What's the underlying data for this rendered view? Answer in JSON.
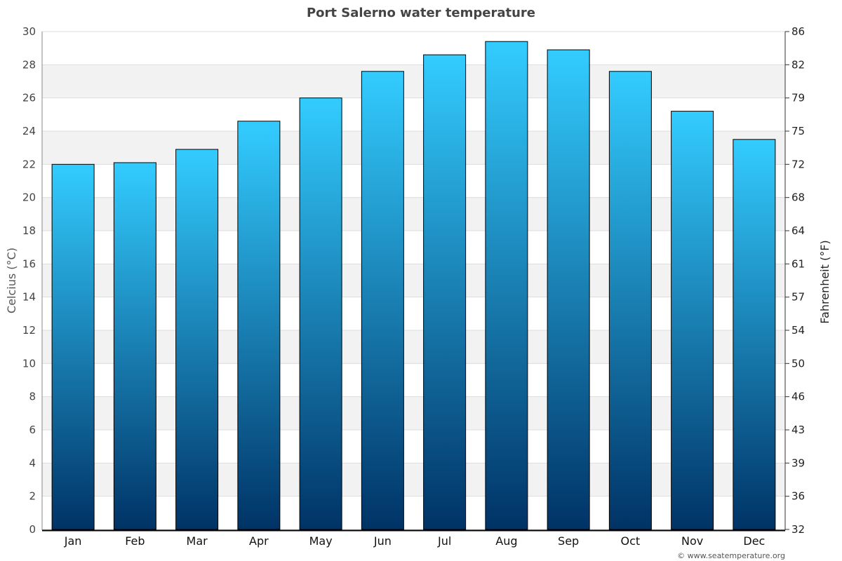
{
  "chart_data": {
    "type": "bar",
    "title": "Port Salerno water temperature",
    "ylabel": "Celcius (°C)",
    "y2label": "Fahrenheit (°F)",
    "categories": [
      "Jan",
      "Feb",
      "Mar",
      "Apr",
      "May",
      "Jun",
      "Jul",
      "Aug",
      "Sep",
      "Oct",
      "Nov",
      "Dec"
    ],
    "values": [
      22.0,
      22.1,
      22.9,
      24.6,
      26.0,
      27.6,
      28.6,
      29.4,
      28.9,
      27.6,
      25.2,
      23.5
    ],
    "ylim": [
      0,
      30
    ],
    "yticks": [
      0,
      2,
      4,
      6,
      8,
      10,
      12,
      14,
      16,
      18,
      20,
      22,
      24,
      26,
      28,
      30
    ],
    "y2ticks": [
      "32",
      "36",
      "39",
      "43",
      "46",
      "50",
      "54",
      "57",
      "61",
      "64",
      "68",
      "72",
      "75",
      "79",
      "82",
      "86"
    ],
    "grid": true,
    "bar_color_top": "#33ccff",
    "bar_color_bottom": "#003366",
    "band_color": "#f2f2f2"
  },
  "credit": "© www.seatemperature.org"
}
